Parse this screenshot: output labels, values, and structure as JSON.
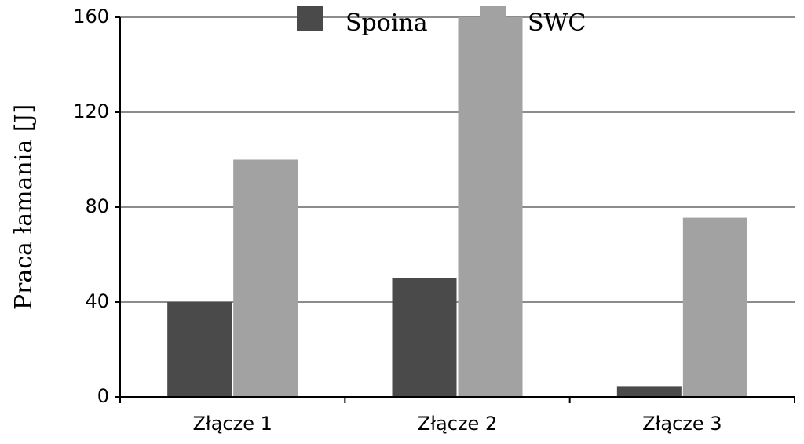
{
  "chart_data": {
    "type": "bar",
    "title": "",
    "xlabel": "",
    "ylabel": "Praca łamania [J]",
    "categories": [
      "Złącze 1",
      "Złącze 2",
      "Złącze 3"
    ],
    "series": [
      {
        "name": "Spoina",
        "values": [
          40,
          50,
          4.5
        ],
        "color": "#4a4a4a"
      },
      {
        "name": "SWC",
        "values": [
          100,
          160,
          75.5
        ],
        "color": "#a2a2a2"
      }
    ],
    "ylim": [
      0,
      160
    ],
    "yticks": [
      0,
      40,
      80,
      120,
      160
    ],
    "grid": true,
    "legend": "top-center"
  }
}
